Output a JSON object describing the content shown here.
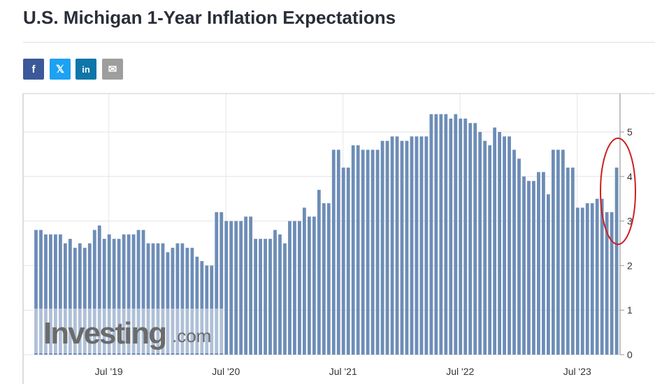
{
  "page": {
    "title": "U.S. Michigan 1-Year Inflation Expectations",
    "share": [
      {
        "icon": "facebook-icon",
        "glyph": "f",
        "color": "#3b5998"
      },
      {
        "icon": "twitter-x-icon",
        "glyph": "𝕏",
        "color": "#1da1f2"
      },
      {
        "icon": "linkedin-icon",
        "glyph": "in",
        "color": "#0e76a8"
      },
      {
        "icon": "email-icon",
        "glyph": "✉",
        "color": "#9e9e9e"
      }
    ]
  },
  "chart_data": {
    "type": "bar",
    "title": "U.S. Michigan 1-Year Inflation Expectations",
    "x_tick_labels": [
      "Jul '19",
      "Jul '20",
      "Jul '21",
      "Jul '22",
      "Jul '23"
    ],
    "y_tick_labels": [
      "0",
      "1",
      "2",
      "3",
      "4",
      "5"
    ],
    "ylim": [
      0,
      5.8
    ],
    "y_axis_position": "right",
    "grid": "horizontal and vertical lines",
    "bar_color": "#6d8db7",
    "annotation": "red ellipse around the latest bars",
    "watermark": {
      "brand": "Investing",
      "suffix": ".com"
    },
    "values": [
      2.8,
      2.8,
      2.7,
      2.7,
      2.7,
      2.7,
      2.5,
      2.6,
      2.4,
      2.5,
      2.4,
      2.5,
      2.8,
      2.9,
      2.6,
      2.7,
      2.6,
      2.6,
      2.7,
      2.7,
      2.7,
      2.8,
      2.8,
      2.5,
      2.5,
      2.5,
      2.5,
      2.3,
      2.4,
      2.5,
      2.5,
      2.4,
      2.4,
      2.2,
      2.1,
      2.0,
      2.0,
      3.2,
      3.2,
      3.0,
      3.0,
      3.0,
      3.0,
      3.1,
      3.1,
      2.6,
      2.6,
      2.6,
      2.6,
      2.8,
      2.7,
      2.5,
      3.0,
      3.0,
      3.0,
      3.3,
      3.1,
      3.1,
      3.7,
      3.4,
      3.4,
      4.6,
      4.6,
      4.2,
      4.2,
      4.7,
      4.7,
      4.6,
      4.6,
      4.6,
      4.6,
      4.8,
      4.8,
      4.9,
      4.9,
      4.8,
      4.8,
      4.9,
      4.9,
      4.9,
      4.9,
      5.4,
      5.4,
      5.4,
      5.4,
      5.3,
      5.4,
      5.3,
      5.3,
      5.2,
      5.2,
      5.0,
      4.8,
      4.7,
      5.1,
      5.0,
      4.9,
      4.9,
      4.6,
      4.4,
      4.0,
      3.9,
      3.9,
      4.1,
      4.1,
      3.6,
      4.6,
      4.6,
      4.6,
      4.2,
      4.2,
      3.3,
      3.3,
      3.4,
      3.4,
      3.5,
      3.5,
      3.2,
      3.2,
      4.2
    ]
  }
}
